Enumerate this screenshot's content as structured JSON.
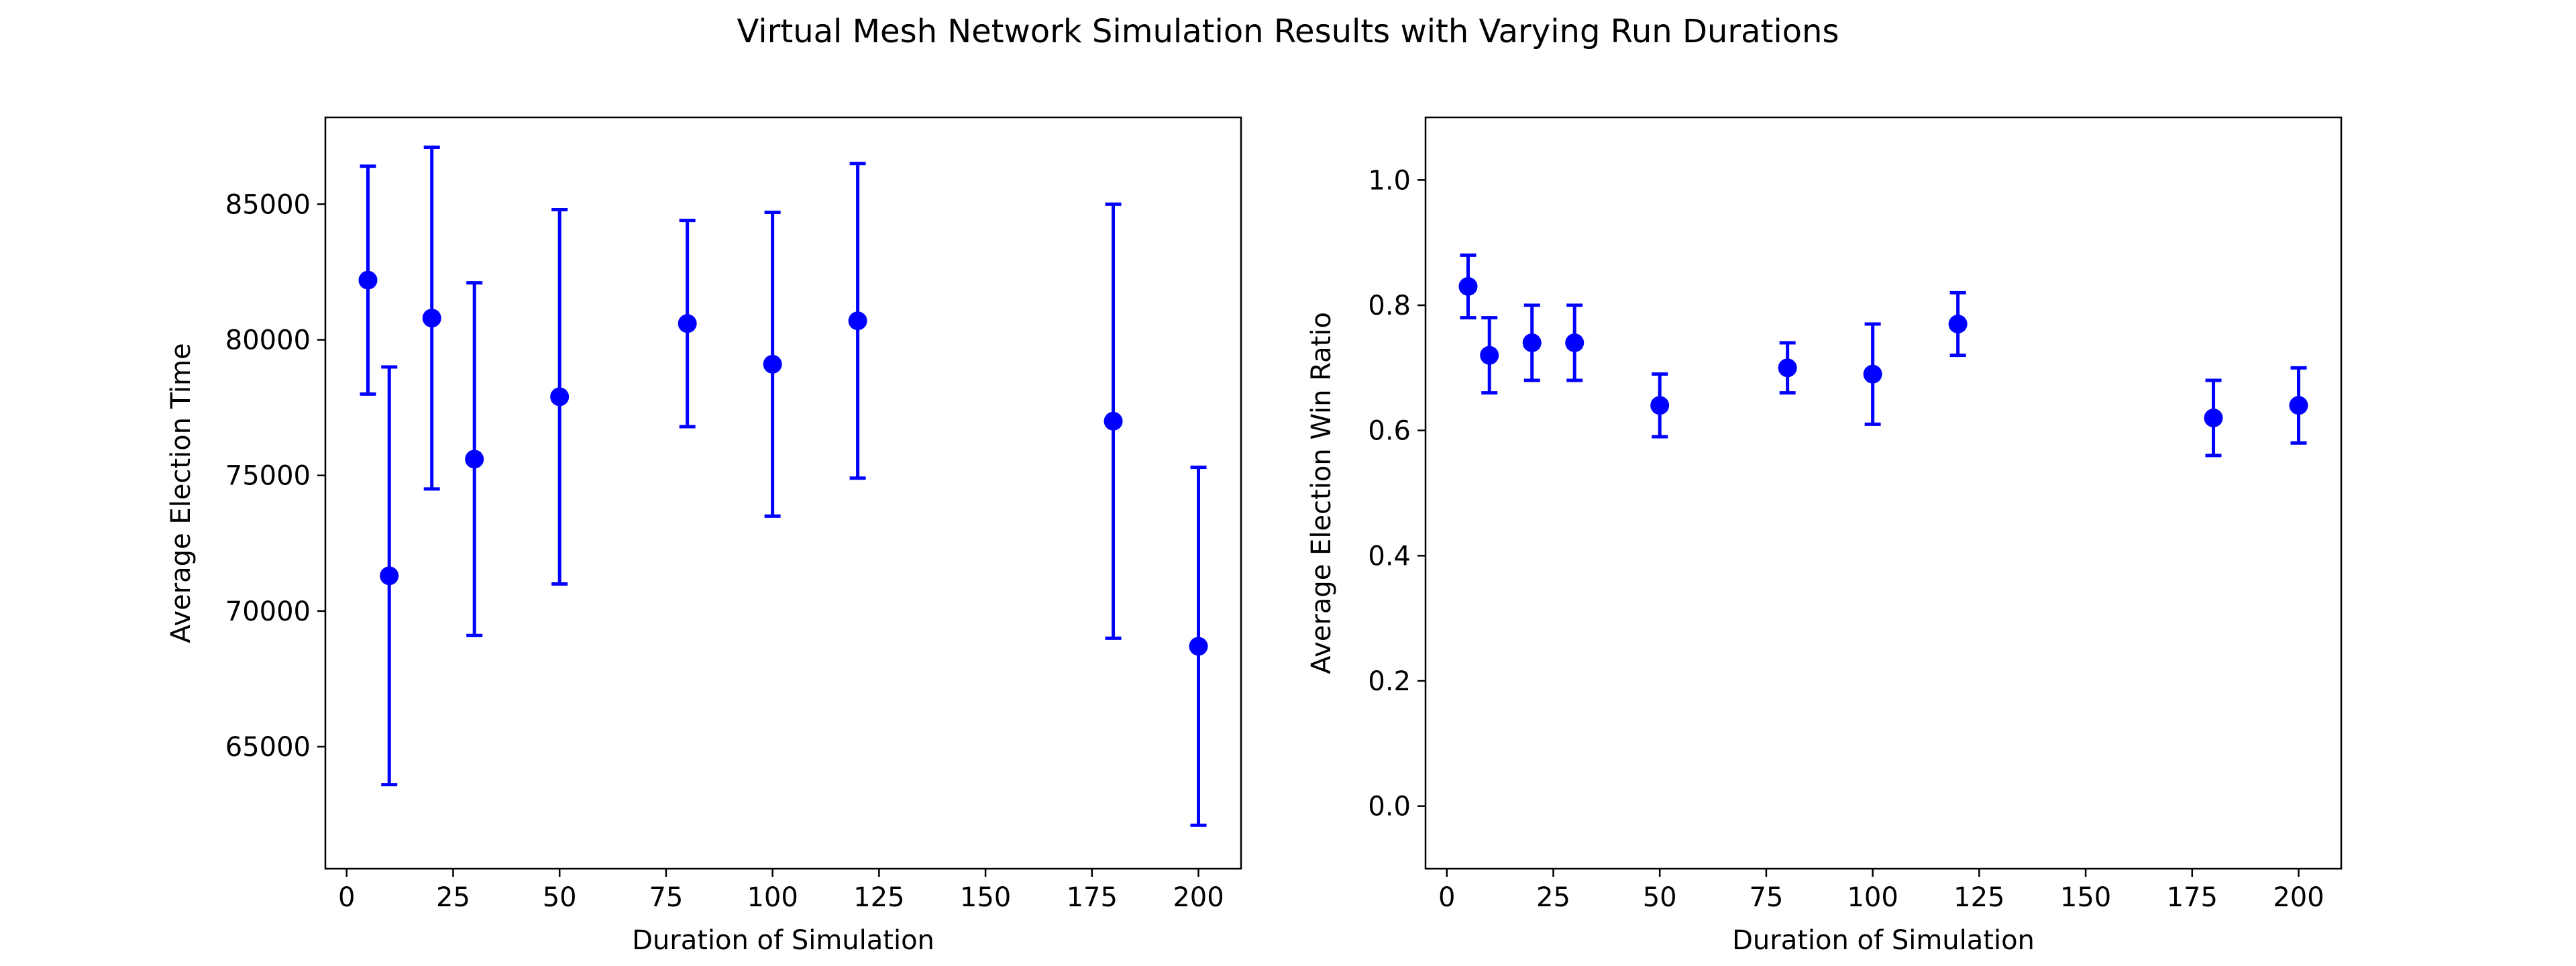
{
  "figure": {
    "title": "Virtual Mesh Network Simulation Results with Varying Run Durations"
  },
  "chart_data": [
    {
      "type": "scatter",
      "errorbars": true,
      "color": "#0000ff",
      "xlabel": "Duration of Simulation",
      "ylabel": "Average Election Time",
      "xlim": [
        -5,
        210
      ],
      "ylim": [
        60500,
        88200
      ],
      "xticks": [
        0,
        25,
        50,
        75,
        100,
        125,
        150,
        175,
        200
      ],
      "yticks": [
        65000,
        70000,
        75000,
        80000,
        85000
      ],
      "grid": false,
      "series": [
        {
          "x": [
            5,
            10,
            20,
            30,
            50,
            80,
            100,
            120,
            180,
            200
          ],
          "y": [
            82200,
            71300,
            80800,
            75600,
            77900,
            80600,
            79100,
            80700,
            77000,
            68700
          ],
          "err": [
            4200,
            7700,
            6300,
            6500,
            6900,
            3800,
            5600,
            5800,
            8000,
            6600
          ]
        }
      ]
    },
    {
      "type": "scatter",
      "errorbars": true,
      "color": "#0000ff",
      "xlabel": "Duration of Simulation",
      "ylabel": "Average Election Win Ratio",
      "xlim": [
        -5,
        210
      ],
      "ylim": [
        -0.1,
        1.1
      ],
      "xticks": [
        0,
        25,
        50,
        75,
        100,
        125,
        150,
        175,
        200
      ],
      "yticks": [
        0.0,
        0.2,
        0.4,
        0.6,
        0.8,
        1.0
      ],
      "grid": false,
      "series": [
        {
          "x": [
            5,
            10,
            20,
            30,
            50,
            80,
            100,
            120,
            180,
            200
          ],
          "y": [
            0.83,
            0.72,
            0.74,
            0.74,
            0.64,
            0.7,
            0.69,
            0.77,
            0.62,
            0.64
          ],
          "err": [
            0.05,
            0.06,
            0.06,
            0.06,
            0.05,
            0.04,
            0.08,
            0.05,
            0.06,
            0.06
          ]
        }
      ]
    }
  ]
}
